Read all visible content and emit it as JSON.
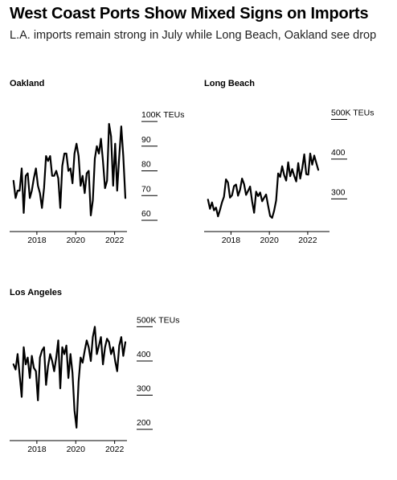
{
  "header": {
    "title": "West Coast Ports Show Mixed Signs on Imports",
    "subtitle": "L.A. imports remain strong in July while Long Beach, Oakland see drop"
  },
  "chart_data": [
    {
      "type": "line",
      "title": "Oakland",
      "xlim": [
        2016.6,
        2022.8
      ],
      "ylim": [
        60,
        101
      ],
      "x_ticks": [
        "2018",
        "2020",
        "2022"
      ],
      "y_ticks": [
        {
          "value": 100,
          "label": "100K TEUs"
        },
        {
          "value": 90,
          "label": "90"
        },
        {
          "value": 80,
          "label": "80"
        },
        {
          "value": 70,
          "label": "70"
        },
        {
          "value": 60,
          "label": "60"
        }
      ],
      "series": [
        {
          "x_start": 2016.8,
          "x_end": 2022.55,
          "values": [
            76,
            69,
            72,
            72,
            81,
            63,
            78,
            79,
            69,
            72,
            77,
            81,
            74,
            71,
            65,
            73,
            86,
            84,
            86,
            78,
            78,
            80,
            77,
            65,
            82,
            87,
            87,
            80,
            81,
            75,
            87,
            91,
            86,
            74,
            78,
            71,
            79,
            80,
            62,
            68,
            85,
            90,
            87,
            93,
            84,
            73,
            76,
            99,
            94,
            74,
            91,
            72,
            86,
            98,
            86,
            69
          ]
        }
      ]
    },
    {
      "type": "line",
      "title": "Long Beach",
      "xlim": [
        2016.6,
        2022.8
      ],
      "ylim": [
        246,
        501
      ],
      "x_ticks": [
        "2018",
        "2020",
        "2022"
      ],
      "y_ticks": [
        {
          "value": 500,
          "label": "500K TEUs"
        },
        {
          "value": 400,
          "label": "400"
        },
        {
          "value": 300,
          "label": "300"
        }
      ],
      "series": [
        {
          "x_start": 2016.8,
          "x_end": 2022.55,
          "values": [
            298,
            275,
            291,
            271,
            278,
            256,
            272,
            291,
            305,
            349,
            341,
            303,
            309,
            332,
            336,
            308,
            323,
            351,
            337,
            310,
            320,
            331,
            294,
            265,
            318,
            307,
            316,
            294,
            303,
            311,
            283,
            257,
            252,
            270,
            296,
            364,
            355,
            382,
            360,
            346,
            392,
            357,
            375,
            358,
            344,
            390,
            351,
            377,
            412,
            362,
            361,
            414,
            386,
            409,
            391,
            373
          ]
        }
      ]
    },
    {
      "type": "line",
      "title": "Los Angeles",
      "xlim": [
        2016.6,
        2022.8
      ],
      "ylim": [
        200,
        501
      ],
      "x_ticks": [
        "2018",
        "2020",
        "2022"
      ],
      "y_ticks": [
        {
          "value": 500,
          "label": "500K TEUs"
        },
        {
          "value": 400,
          "label": "400"
        },
        {
          "value": 300,
          "label": "300"
        },
        {
          "value": 200,
          "label": "200"
        }
      ],
      "series": [
        {
          "x_start": 2016.8,
          "x_end": 2022.55,
          "values": [
            390,
            375,
            420,
            360,
            295,
            440,
            390,
            410,
            350,
            415,
            380,
            370,
            285,
            410,
            430,
            440,
            330,
            385,
            420,
            400,
            370,
            410,
            460,
            320,
            440,
            420,
            445,
            350,
            420,
            365,
            255,
            205,
            340,
            410,
            395,
            430,
            460,
            440,
            400,
            470,
            500,
            420,
            445,
            470,
            390,
            440,
            465,
            455,
            420,
            440,
            400,
            370,
            445,
            470,
            415,
            455
          ]
        }
      ]
    }
  ]
}
